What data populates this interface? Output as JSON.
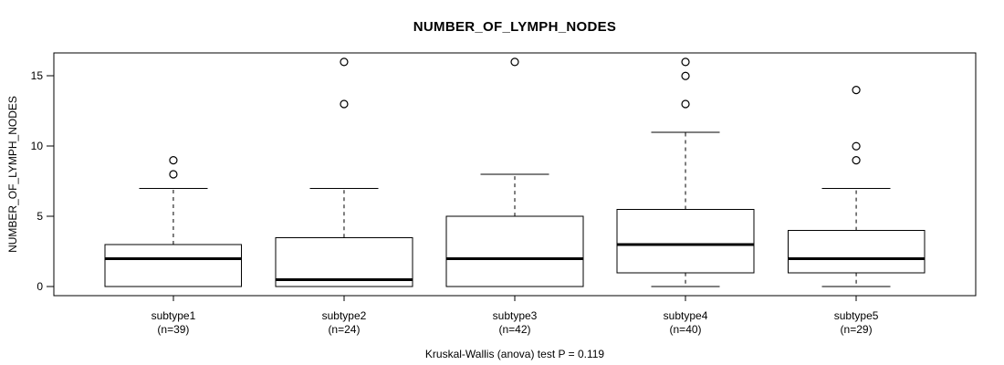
{
  "chart_data": {
    "type": "boxplot",
    "title": "NUMBER_OF_LYMPH_NODES",
    "ylabel": "NUMBER_OF_LYMPH_NODES",
    "caption": "Kruskal-Wallis (anova) test P = 0.119",
    "yticks": [
      0,
      5,
      10,
      15
    ],
    "ylim": [
      -0.64,
      16.64
    ],
    "grid": false,
    "legend": "none",
    "groups": [
      {
        "label": "subtype1",
        "n_label": "(n=39)",
        "n": 39,
        "whisker_low": 0,
        "q1": 0,
        "median": 2,
        "q3": 3,
        "whisker_high": 7,
        "outliers": [
          8,
          9
        ]
      },
      {
        "label": "subtype2",
        "n_label": "(n=24)",
        "n": 24,
        "whisker_low": 0,
        "q1": 0,
        "median": 0.5,
        "q3": 3.5,
        "whisker_high": 7,
        "outliers": [
          13,
          16
        ]
      },
      {
        "label": "subtype3",
        "n_label": "(n=42)",
        "n": 42,
        "whisker_low": 0,
        "q1": 0,
        "median": 2,
        "q3": 5,
        "whisker_high": 8,
        "outliers": [
          16
        ]
      },
      {
        "label": "subtype4",
        "n_label": "(n=40)",
        "n": 40,
        "whisker_low": 0,
        "q1": 1,
        "median": 3,
        "q3": 5.5,
        "whisker_high": 11,
        "outliers": [
          13,
          15,
          16
        ]
      },
      {
        "label": "subtype5",
        "n_label": "(n=29)",
        "n": 29,
        "whisker_low": 0,
        "q1": 1,
        "median": 2,
        "q3": 4,
        "whisker_high": 7,
        "outliers": [
          9,
          10,
          14
        ]
      }
    ],
    "colors": {
      "stroke": "#000000",
      "box_fill": "#ffffff",
      "background": "#ffffff"
    }
  }
}
